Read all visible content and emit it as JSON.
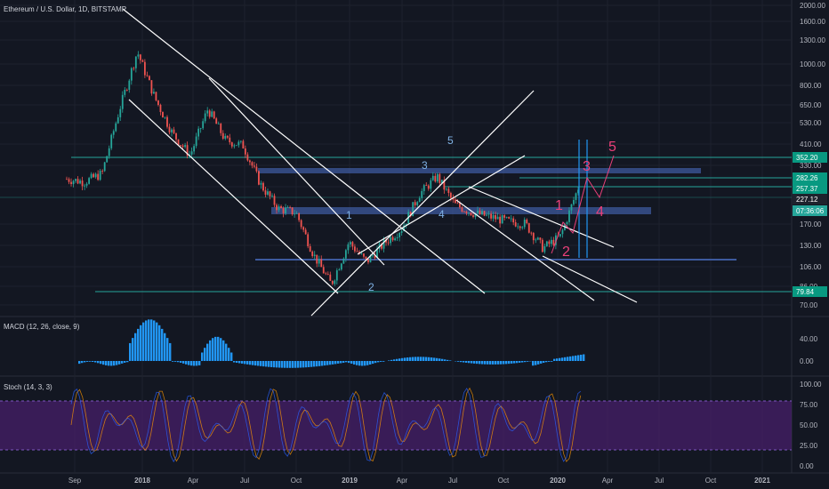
{
  "header": {
    "symbol_title": "Ethereum / U.S. Dollar, 1D, BITSTAMP"
  },
  "panes": {
    "macd_title": "MACD (12, 26, close, 9)",
    "stoch_title": "Stoch (14, 3, 3)"
  },
  "colors": {
    "background": "#131722",
    "grid": "#1e222d",
    "candle_up": "#26a69a",
    "candle_down": "#ef5350",
    "trend_line": "#ffffff",
    "support_zone": "#3d5a9e",
    "horizontal_level": "#26a69a",
    "macd_hist": "#2196f3",
    "stoch_band": "#4a1f6e",
    "stoch_line": "#7e57c2",
    "wave_count_blue": "#7fb2e5",
    "wave_count_pink": "#ec407a",
    "price_badge_green": "#26a69a",
    "price_badge_teal": "#089981"
  },
  "chart_data": [
    {
      "type": "candlestick",
      "title": "Ethereum / U.S. Dollar, 1D, BITSTAMP",
      "yscale": "log",
      "ylim": [
        62,
        2400
      ],
      "y_ticks": [
        2000,
        1600,
        1300,
        1000,
        800,
        650,
        530,
        410,
        330,
        210,
        170,
        130,
        106,
        86,
        70
      ],
      "y_tick_labels": [
        "2000.00",
        "1600.00",
        "1300.00",
        "1000.00",
        "800.00",
        "650.00",
        "530.00",
        "410.00",
        "330.00",
        "210.00",
        "170.00",
        "130.00",
        "106.00",
        "86.00",
        "70.00"
      ],
      "x_tick_labels": [
        "Sep",
        "2018",
        "Apr",
        "Jul",
        "Oct",
        "2019",
        "Apr",
        "Jul",
        "Oct",
        "2020",
        "Apr",
        "Jul",
        "Oct",
        "2021"
      ],
      "price_path": [
        [
          "2017-09",
          300
        ],
        [
          "2017-10",
          290
        ],
        [
          "2017-11",
          320
        ],
        [
          "2017-12",
          700
        ],
        [
          "2018-01",
          1400
        ],
        [
          "2018-02",
          800
        ],
        [
          "2018-03",
          520
        ],
        [
          "2018-04",
          400
        ],
        [
          "2018-05",
          700
        ],
        [
          "2018-06",
          480
        ],
        [
          "2018-07",
          450
        ],
        [
          "2018-08",
          280
        ],
        [
          "2018-09",
          210
        ],
        [
          "2018-10",
          200
        ],
        [
          "2018-11",
          120
        ],
        [
          "2018-12",
          84
        ],
        [
          "2019-01",
          140
        ],
        [
          "2019-02",
          110
        ],
        [
          "2019-03",
          138
        ],
        [
          "2019-04",
          165
        ],
        [
          "2019-05",
          250
        ],
        [
          "2019-06",
          310
        ],
        [
          "2019-07",
          220
        ],
        [
          "2019-08",
          200
        ],
        [
          "2019-09",
          190
        ],
        [
          "2019-10",
          180
        ],
        [
          "2019-11",
          175
        ],
        [
          "2019-12",
          130
        ],
        [
          "2020-01",
          150
        ],
        [
          "2020-02",
          270
        ]
      ],
      "price_badges": [
        {
          "value": "352.20",
          "color": "#089981"
        },
        {
          "value": "282.26",
          "color": "#089981"
        },
        {
          "value": "257.37",
          "color": "#089981"
        },
        {
          "value": "227.12",
          "color": "#131722"
        },
        {
          "value": "07:36:06",
          "color": "#26a69a"
        },
        {
          "value": "79.84",
          "color": "#089981"
        }
      ],
      "wave_labels_blue": [
        "1",
        "2",
        "3",
        "4",
        "5"
      ],
      "wave_labels_pink": [
        "1",
        "2",
        "3",
        "4",
        "5"
      ]
    },
    {
      "type": "bar",
      "title": "MACD (12, 26, close, 9)",
      "y_ticks": [
        40,
        0
      ],
      "y_tick_labels": [
        "40.00",
        "0.00"
      ]
    },
    {
      "type": "line",
      "title": "Stoch (14, 3, 3)",
      "ylim": [
        0,
        100
      ],
      "y_ticks": [
        100,
        75,
        50,
        25,
        0
      ],
      "y_tick_labels": [
        "100.00",
        "75.00",
        "50.00",
        "25.00",
        "0.00"
      ],
      "band": [
        20,
        80
      ]
    }
  ]
}
